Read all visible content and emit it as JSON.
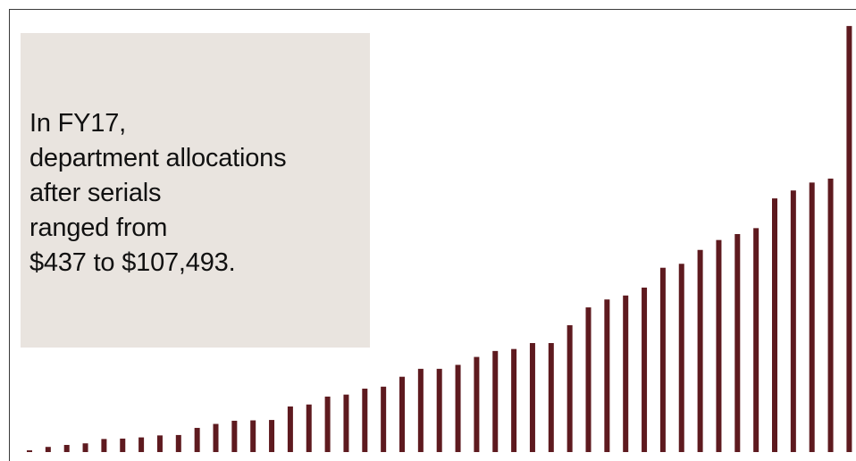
{
  "colors": {
    "bar": "#5e1a1f",
    "callout_bg": "#e9e4df",
    "frame": "#3a3a3a",
    "text": "#111111"
  },
  "callout": {
    "text": "In FY17,\ndepartment allocations\nafter serials\nranged from\n$437 to $107,493."
  },
  "chart_data": {
    "type": "bar",
    "title": "",
    "xlabel": "",
    "ylabel": "",
    "ylim": [
      0,
      110000
    ],
    "grid": false,
    "legend": "none",
    "values": [
      437,
      1300,
      1800,
      2200,
      3300,
      3400,
      3700,
      4200,
      4300,
      6100,
      7100,
      7900,
      8000,
      8100,
      11500,
      12000,
      14000,
      14500,
      16000,
      16500,
      19000,
      21000,
      21000,
      22000,
      24000,
      25500,
      26000,
      27500,
      27500,
      32000,
      36500,
      38500,
      39500,
      41500,
      46500,
      47500,
      51000,
      53500,
      55000,
      56500,
      64000,
      66000,
      68000,
      69000,
      107493
    ]
  }
}
